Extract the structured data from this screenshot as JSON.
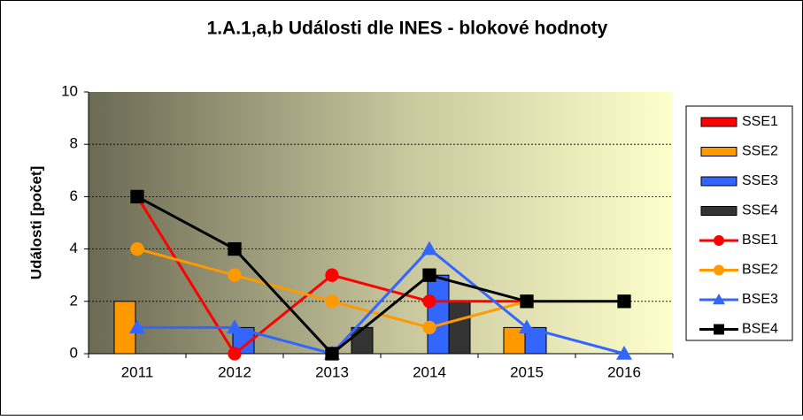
{
  "chart_data": {
    "type": "combo",
    "title": "1.A.1,a,b  Události dle INES - blokové hodnoty",
    "y_label": "Události [počet]",
    "categories": [
      "2011",
      "2012",
      "2013",
      "2014",
      "2015",
      "2016"
    ],
    "ylim": [
      0,
      10
    ],
    "yticks": [
      0,
      2,
      4,
      6,
      8,
      10
    ],
    "grid": true,
    "legend": "right",
    "series": [
      {
        "name": "SSE1",
        "type": "bar",
        "color": "#ff0000",
        "values": [
          0,
          0,
          0,
          0,
          0,
          0
        ]
      },
      {
        "name": "SSE2",
        "type": "bar",
        "color": "#ff9900",
        "values": [
          2,
          0,
          0,
          0,
          1,
          0
        ]
      },
      {
        "name": "SSE3",
        "type": "bar",
        "color": "#3366ff",
        "values": [
          0,
          1,
          0,
          3,
          1,
          0
        ]
      },
      {
        "name": "SSE4",
        "type": "bar",
        "color": "#333333",
        "values": [
          0,
          0,
          1,
          2,
          0,
          0
        ]
      },
      {
        "name": "BSE1",
        "type": "line",
        "marker": "circle",
        "color": "#ff0000",
        "values": [
          6,
          0,
          3,
          2,
          2,
          null
        ]
      },
      {
        "name": "BSE2",
        "type": "line",
        "marker": "circle",
        "color": "#ff9900",
        "values": [
          4,
          3,
          2,
          1,
          2,
          null
        ]
      },
      {
        "name": "BSE3",
        "type": "line",
        "marker": "triangle",
        "color": "#3366ff",
        "values": [
          1,
          1,
          0,
          4,
          1,
          0
        ]
      },
      {
        "name": "BSE4",
        "type": "line",
        "marker": "square",
        "color": "#000000",
        "values": [
          6,
          4,
          0,
          3,
          2,
          2
        ]
      }
    ]
  }
}
